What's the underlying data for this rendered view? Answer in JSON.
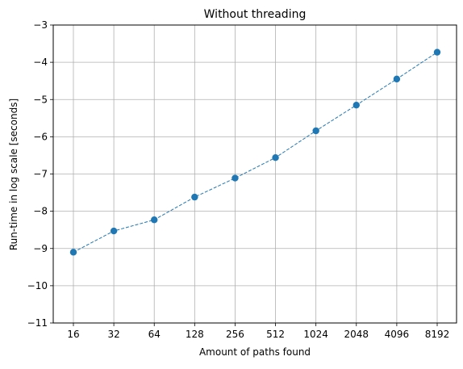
{
  "chart_data": {
    "type": "line",
    "title": "Without threading",
    "xlabel": "Amount of paths found",
    "ylabel": "Run-time in log scale [seconds]",
    "categories": [
      "16",
      "32",
      "64",
      "128",
      "256",
      "512",
      "1024",
      "2048",
      "4096",
      "8192"
    ],
    "series": [
      {
        "values": [
          -9.1,
          -8.53,
          -8.23,
          -7.62,
          -7.11,
          -6.56,
          -5.84,
          -5.15,
          -4.45,
          -3.73
        ]
      }
    ],
    "ylim": [
      -11,
      -3
    ],
    "yticks": [
      "−3",
      "−4",
      "−5",
      "−6",
      "−7",
      "−8",
      "−9",
      "−10",
      "−11"
    ],
    "grid": true,
    "line_style": "dashed",
    "marker": "circle",
    "color": "#1f77b4",
    "grid_color": "#b0b0b0"
  }
}
